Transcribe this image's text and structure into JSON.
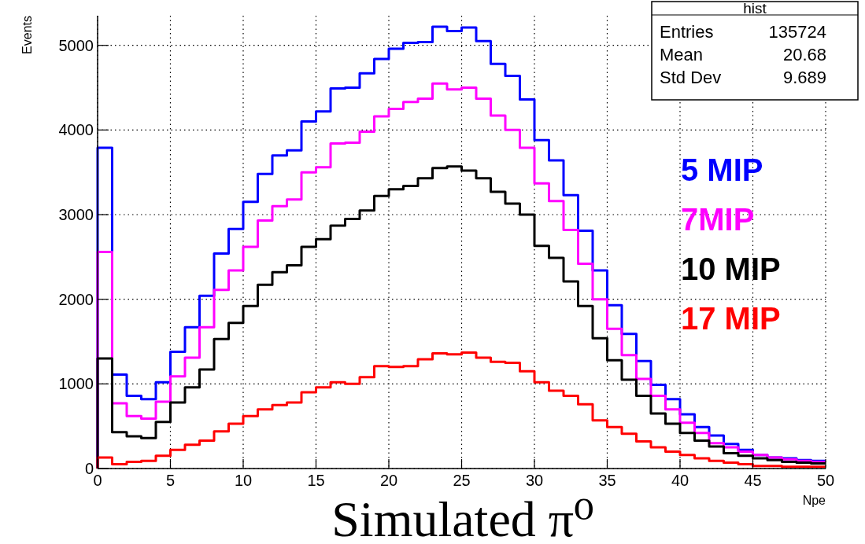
{
  "chart_data": {
    "type": "histogram",
    "xlabel": "Npe",
    "ylabel": "Events",
    "bins": [
      0,
      1,
      2,
      3,
      4,
      5,
      6,
      7,
      8,
      9,
      10,
      11,
      12,
      13,
      14,
      15,
      16,
      17,
      18,
      19,
      20,
      21,
      22,
      23,
      24,
      25,
      26,
      27,
      28,
      29,
      30,
      31,
      32,
      33,
      34,
      35,
      36,
      37,
      38,
      39,
      40,
      41,
      42,
      43,
      44,
      45,
      46,
      47,
      48,
      49,
      50
    ],
    "series": [
      {
        "name": "5 MIP",
        "color": "#0000ff",
        "values": [
          3790,
          1110,
          860,
          820,
          1020,
          1380,
          1670,
          2040,
          2540,
          2830,
          3150,
          3480,
          3700,
          3760,
          4100,
          4220,
          4490,
          4500,
          4670,
          4840,
          4960,
          5030,
          5040,
          5220,
          5170,
          5210,
          5050,
          4780,
          4640,
          4360,
          3880,
          3640,
          3230,
          2810,
          2340,
          1930,
          1590,
          1270,
          990,
          820,
          640,
          490,
          390,
          290,
          220,
          160,
          130,
          120,
          100,
          90
        ]
      },
      {
        "name": "7MIP",
        "color": "#ff00ff",
        "values": [
          2560,
          770,
          620,
          590,
          790,
          1090,
          1310,
          1670,
          2110,
          2340,
          2620,
          2930,
          3100,
          3180,
          3500,
          3560,
          3840,
          3850,
          3980,
          4160,
          4250,
          4330,
          4370,
          4550,
          4480,
          4500,
          4370,
          4170,
          4000,
          3790,
          3370,
          3160,
          2820,
          2420,
          2000,
          1650,
          1340,
          1060,
          860,
          700,
          540,
          420,
          300,
          250,
          200,
          160,
          130,
          110,
          90,
          80
        ]
      },
      {
        "name": "10 MIP",
        "color": "#000000",
        "values": [
          1300,
          430,
          380,
          360,
          550,
          780,
          960,
          1170,
          1530,
          1720,
          1920,
          2170,
          2320,
          2400,
          2620,
          2710,
          2870,
          2950,
          3050,
          3220,
          3300,
          3340,
          3430,
          3550,
          3570,
          3520,
          3430,
          3270,
          3130,
          3000,
          2630,
          2490,
          2210,
          1920,
          1540,
          1280,
          1050,
          860,
          650,
          530,
          420,
          330,
          260,
          180,
          150,
          120,
          100,
          80,
          70,
          60
        ]
      },
      {
        "name": "17 MIP",
        "color": "#ff0000",
        "values": [
          130,
          50,
          80,
          90,
          150,
          220,
          280,
          330,
          440,
          530,
          620,
          700,
          750,
          780,
          900,
          960,
          1020,
          1000,
          1080,
          1210,
          1200,
          1210,
          1290,
          1360,
          1350,
          1370,
          1310,
          1260,
          1250,
          1150,
          1020,
          920,
          860,
          760,
          570,
          490,
          410,
          320,
          250,
          200,
          160,
          120,
          90,
          70,
          50,
          30,
          30,
          20,
          20,
          20
        ]
      }
    ],
    "xlim": [
      0,
      50
    ],
    "xticks": [
      0,
      5,
      10,
      15,
      20,
      25,
      30,
      35,
      40,
      45,
      50
    ],
    "ylim": [
      0,
      5350
    ],
    "yticks": [
      0,
      1000,
      2000,
      3000,
      4000,
      5000
    ],
    "grid": true,
    "legend": "right",
    "annotations": [
      "hist",
      "Entries",
      "135724",
      "Mean",
      "20.68",
      "Std Dev",
      "9.689",
      "Simulated π⁰"
    ]
  }
}
